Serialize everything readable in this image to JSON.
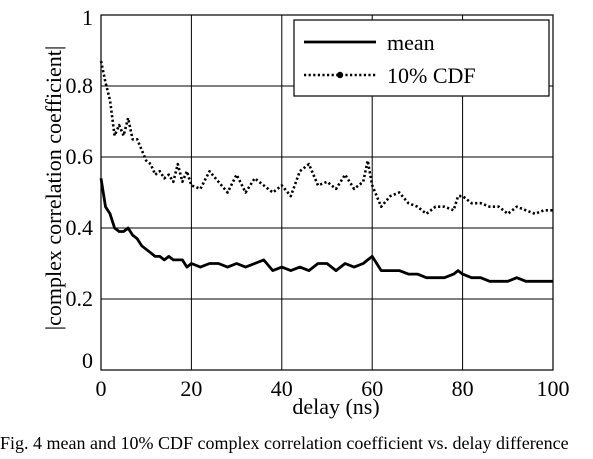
{
  "chart_data": {
    "type": "line",
    "title": "",
    "xlabel": "delay (ns)",
    "ylabel": "|complex correlation coefficient|",
    "xlim": [
      0,
      100
    ],
    "ylim": [
      0,
      1
    ],
    "x_ticks": [
      "0",
      "20",
      "40",
      "60",
      "80",
      "100"
    ],
    "y_ticks": [
      "0",
      "0.2",
      "0.4",
      "0.6",
      "0.8",
      "1"
    ],
    "grid": true,
    "legend_position": "top-right",
    "series": [
      {
        "name": "mean",
        "style": "solid",
        "color": "#000000",
        "x": [
          0,
          1,
          2,
          3,
          4,
          5,
          6,
          7,
          8,
          9,
          10,
          11,
          12,
          13,
          14,
          15,
          16,
          17,
          18,
          19,
          20,
          22,
          24,
          26,
          28,
          30,
          32,
          34,
          36,
          38,
          40,
          42,
          44,
          46,
          48,
          50,
          52,
          54,
          56,
          58,
          59,
          60,
          62,
          64,
          66,
          68,
          70,
          72,
          74,
          76,
          78,
          79,
          80,
          82,
          84,
          86,
          88,
          90,
          92,
          94,
          96,
          98,
          100
        ],
        "y": [
          0.54,
          0.46,
          0.44,
          0.4,
          0.39,
          0.39,
          0.4,
          0.38,
          0.37,
          0.35,
          0.34,
          0.33,
          0.32,
          0.32,
          0.31,
          0.32,
          0.31,
          0.31,
          0.31,
          0.29,
          0.3,
          0.29,
          0.3,
          0.3,
          0.29,
          0.3,
          0.29,
          0.3,
          0.31,
          0.28,
          0.29,
          0.28,
          0.29,
          0.28,
          0.3,
          0.3,
          0.28,
          0.3,
          0.29,
          0.3,
          0.31,
          0.32,
          0.28,
          0.28,
          0.28,
          0.27,
          0.27,
          0.26,
          0.26,
          0.26,
          0.27,
          0.28,
          0.27,
          0.26,
          0.26,
          0.25,
          0.25,
          0.25,
          0.26,
          0.25,
          0.25,
          0.25,
          0.25
        ]
      },
      {
        "name": "10% CDF",
        "style": "dotted",
        "color": "#000000",
        "x": [
          0,
          1,
          2,
          3,
          4,
          5,
          6,
          7,
          8,
          9,
          10,
          11,
          12,
          13,
          14,
          15,
          16,
          17,
          18,
          19,
          20,
          22,
          24,
          26,
          28,
          30,
          32,
          34,
          36,
          38,
          40,
          42,
          44,
          46,
          48,
          50,
          52,
          54,
          56,
          58,
          59,
          60,
          62,
          64,
          66,
          68,
          70,
          72,
          74,
          76,
          78,
          79,
          80,
          82,
          84,
          86,
          88,
          90,
          92,
          94,
          96,
          98,
          100
        ],
        "y": [
          0.87,
          0.81,
          0.76,
          0.66,
          0.69,
          0.66,
          0.71,
          0.65,
          0.65,
          0.62,
          0.59,
          0.58,
          0.55,
          0.56,
          0.54,
          0.55,
          0.53,
          0.58,
          0.53,
          0.56,
          0.52,
          0.51,
          0.56,
          0.53,
          0.5,
          0.55,
          0.5,
          0.54,
          0.52,
          0.5,
          0.52,
          0.49,
          0.56,
          0.58,
          0.52,
          0.53,
          0.51,
          0.55,
          0.51,
          0.53,
          0.59,
          0.52,
          0.46,
          0.49,
          0.5,
          0.47,
          0.46,
          0.44,
          0.46,
          0.46,
          0.45,
          0.49,
          0.49,
          0.47,
          0.47,
          0.46,
          0.46,
          0.44,
          0.46,
          0.45,
          0.44,
          0.45,
          0.45
        ]
      }
    ]
  },
  "caption_fragment": "Fig. 4  mean and 10% CDF complex correlation coefficient vs. delay difference"
}
